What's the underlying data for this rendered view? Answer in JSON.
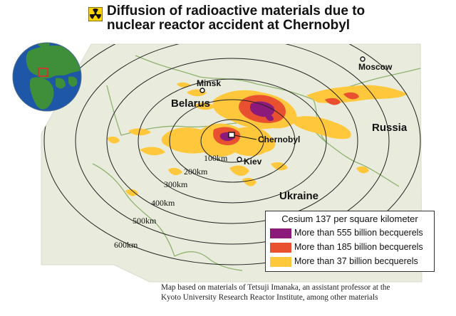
{
  "title": {
    "line1": "Diffusion of radioactive materials due to",
    "line2": "nuclear reactor accident at Chernobyl",
    "icon": "radiation-icon"
  },
  "places": {
    "moscow": "Moscow",
    "minsk": "Minsk",
    "belarus": "Belarus",
    "russia": "Russia",
    "chernobyl": "Chernobyl",
    "kiev": "Kiev",
    "ukraine": "Ukraine"
  },
  "rings": [
    "100km",
    "200km",
    "300km",
    "400km",
    "500km",
    "600km"
  ],
  "legend": {
    "title": "Cesium 137 per square kilometer",
    "items": [
      {
        "label": "More than 555 billion becquerels",
        "color": "#8b1a7a"
      },
      {
        "label": "More than 185 billion becquerels",
        "color": "#e8502f"
      },
      {
        "label": "More than 37 billion becquerels",
        "color": "#ffc83c"
      }
    ]
  },
  "credit": {
    "line1": "Map based on materials of Tetsuji Imanaka, an assistant professor at the",
    "line2": "Kyoto University Research Reactor Institute, among other materials"
  },
  "colors": {
    "land": "#e9ecdc",
    "border": "#8fb26f",
    "ring": "#222222",
    "ocean": "#1e57a8",
    "globe_land": "#3f8f3a"
  }
}
